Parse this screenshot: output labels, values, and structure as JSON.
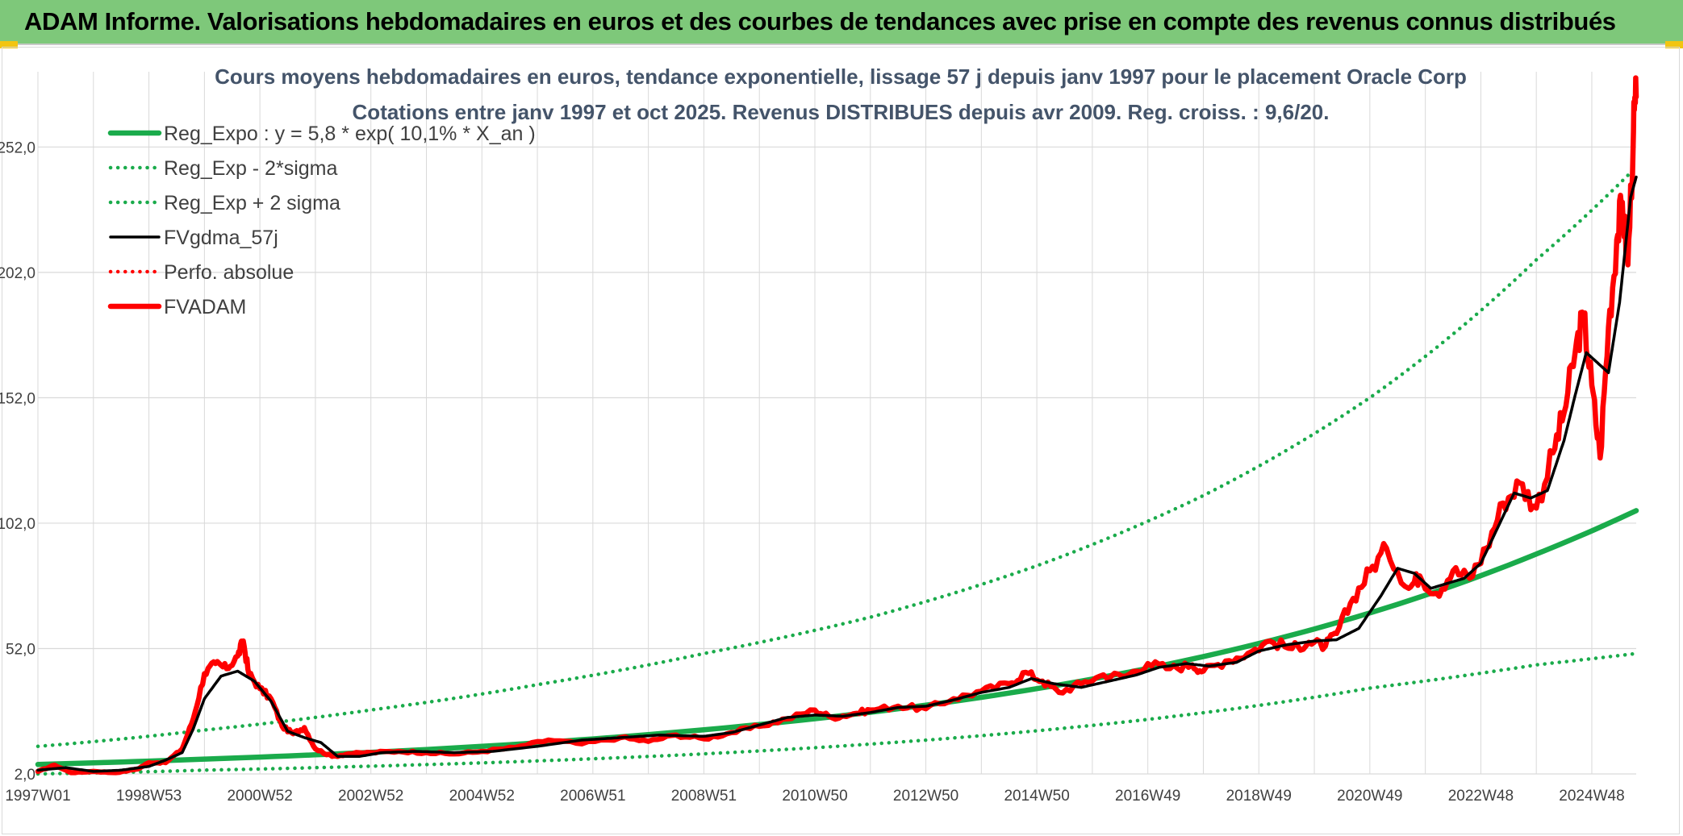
{
  "banner": {
    "title": "ADAM Informe. Valorisations hebdomadaires en euros et des courbes de tendances avec prise en compte des revenus connus distribués"
  },
  "colors": {
    "banner_bg": "#7ec87a",
    "reg_green": "#1aab4b",
    "black": "#000000",
    "red": "#ff0000",
    "grid": "#d9d9d9"
  },
  "chart_data": {
    "type": "line",
    "title": "Cours moyens hebdomadaires en euros, tendance exponentielle, lissage 57 j depuis janv 1997 pour le placement Oracle Corp",
    "subtitle": "Cotations entre janv 1997 et oct 2025. Revenus DISTRIBUES depuis avr 2009. Reg. croiss. : 9,6/20.",
    "xlabel": "",
    "ylabel": "",
    "x_range": [
      1997.0,
      2025.8
    ],
    "ylim": [
      2,
      282
    ],
    "y_ticks": [
      {
        "value": 2,
        "label": "2,0"
      },
      {
        "value": 52,
        "label": "52,0"
      },
      {
        "value": 102,
        "label": "102,0"
      },
      {
        "value": 152,
        "label": "152,0"
      },
      {
        "value": 202,
        "label": "202,0"
      },
      {
        "value": 252,
        "label": "252,0"
      }
    ],
    "x_ticks": [
      {
        "x": 1997.0,
        "label": "1997W01"
      },
      {
        "x": 1999.0,
        "label": "1998W53"
      },
      {
        "x": 2001.0,
        "label": "2000W52"
      },
      {
        "x": 2003.0,
        "label": "2002W52"
      },
      {
        "x": 2005.0,
        "label": "2004W52"
      },
      {
        "x": 2007.0,
        "label": "2006W51"
      },
      {
        "x": 2009.0,
        "label": "2008W51"
      },
      {
        "x": 2011.0,
        "label": "2010W50"
      },
      {
        "x": 2013.0,
        "label": "2012W50"
      },
      {
        "x": 2015.0,
        "label": "2014W50"
      },
      {
        "x": 2017.0,
        "label": "2016W49"
      },
      {
        "x": 2019.0,
        "label": "2018W49"
      },
      {
        "x": 2021.0,
        "label": "2020W49"
      },
      {
        "x": 2023.0,
        "label": "2022W48"
      },
      {
        "x": 2025.0,
        "label": "2024W48"
      }
    ],
    "legend_position": "top-left",
    "series": [
      {
        "name": "Reg_Expo : y = 5,8 * exp( 10,1% *  X_an )",
        "style": "solid-thick",
        "color": "#1aab4b",
        "x": [
          1997.0,
          2000.0,
          2003.0,
          2006.0,
          2009.0,
          2012.0,
          2015.0,
          2018.0,
          2021.0,
          2024.0,
          2025.8
        ],
        "y": [
          5.8,
          7.9,
          10.6,
          14.4,
          19.6,
          26.6,
          36.0,
          48.8,
          66.2,
          89.7,
          107.0
        ]
      },
      {
        "name": "Reg_Exp - 2*sigma",
        "style": "dotted",
        "color": "#1aab4b",
        "x": [
          1997.0,
          2000.0,
          2003.0,
          2006.0,
          2009.0,
          2012.0,
          2015.0,
          2018.0,
          2021.0,
          2024.0,
          2025.8
        ],
        "y": [
          2.0,
          3.5,
          5.1,
          7.2,
          10.0,
          13.9,
          19.2,
          26.4,
          36.2,
          45.5,
          50.0
        ]
      },
      {
        "name": "Reg_Exp + 2 sigma",
        "style": "dotted",
        "color": "#1aab4b",
        "x": [
          1997.0,
          2000.0,
          2003.0,
          2006.0,
          2009.0,
          2012.0,
          2015.0,
          2018.0,
          2021.0,
          2024.0,
          2025.8
        ],
        "y": [
          13.0,
          19.5,
          27.5,
          37.6,
          50.0,
          64.5,
          85.0,
          113.0,
          152.0,
          207.0,
          244.0
        ]
      },
      {
        "name": "FVgdma_57j",
        "style": "solid",
        "color": "#000000",
        "x": [
          1997.0,
          1997.5,
          1998.0,
          1998.5,
          1999.0,
          1999.3,
          1999.6,
          1999.8,
          2000.0,
          2000.3,
          2000.6,
          2000.9,
          2001.2,
          2001.5,
          2001.8,
          2002.1,
          2002.4,
          2002.8,
          2003.2,
          2003.8,
          2004.5,
          2005.2,
          2006.0,
          2006.8,
          2007.5,
          2008.2,
          2009.0,
          2009.5,
          2010.0,
          2010.5,
          2011.0,
          2011.5,
          2012.0,
          2012.5,
          2013.0,
          2013.5,
          2014.0,
          2014.5,
          2014.9,
          2015.3,
          2015.8,
          2016.3,
          2016.8,
          2017.2,
          2017.7,
          2018.1,
          2018.6,
          2019.0,
          2019.5,
          2020.0,
          2020.4,
          2020.8,
          2021.2,
          2021.5,
          2021.8,
          2022.1,
          2022.4,
          2022.7,
          2023.0,
          2023.3,
          2023.6,
          2023.9,
          2024.2,
          2024.5,
          2024.7,
          2024.9,
          2025.1,
          2025.3,
          2025.5,
          2025.7,
          2025.8
        ],
        "y": [
          3.5,
          4.5,
          3.0,
          3.5,
          5.0,
          7.5,
          10.5,
          20.0,
          32.0,
          41.0,
          43.0,
          39.0,
          31.0,
          19.0,
          16.5,
          14.5,
          9.0,
          9.0,
          10.5,
          11.0,
          10.5,
          11.0,
          13.0,
          15.5,
          16.5,
          17.5,
          17.0,
          18.5,
          21.5,
          24.5,
          25.5,
          25.0,
          26.5,
          28.5,
          29.0,
          31.5,
          34.5,
          36.5,
          40.0,
          38.0,
          36.5,
          39.0,
          41.5,
          44.5,
          46.0,
          45.0,
          46.5,
          51.0,
          53.5,
          55.0,
          55.5,
          60.0,
          73.0,
          84.0,
          82.0,
          76.0,
          78.0,
          80.0,
          86.0,
          100.0,
          114.0,
          112.0,
          115.0,
          135.0,
          153.0,
          170.0,
          166.0,
          162.0,
          190.0,
          232.0,
          240.0
        ]
      },
      {
        "name": "Perfo. absolue",
        "style": "dotted",
        "color": "#ff0000",
        "x": [],
        "y": []
      },
      {
        "name": "FVADAM",
        "style": "solid-thick",
        "color": "#ff0000",
        "x": [
          1997.0,
          1997.3,
          1997.6,
          1998.0,
          1998.4,
          1998.8,
          1999.0,
          1999.3,
          1999.6,
          1999.8,
          2000.0,
          2000.2,
          2000.4,
          2000.6,
          2000.7,
          2000.8,
          2001.0,
          2001.2,
          2001.4,
          2001.6,
          2001.8,
          2002.0,
          2002.3,
          2002.6,
          2003.0,
          2003.5,
          2004.0,
          2004.5,
          2005.0,
          2005.6,
          2006.2,
          2006.8,
          2007.5,
          2008.0,
          2008.5,
          2009.0,
          2009.5,
          2010.0,
          2010.5,
          2011.0,
          2011.3,
          2011.7,
          2012.0,
          2012.5,
          2013.0,
          2013.5,
          2014.0,
          2014.5,
          2014.8,
          2015.1,
          2015.4,
          2015.8,
          2016.2,
          2016.6,
          2017.0,
          2017.4,
          2017.8,
          2018.0,
          2018.4,
          2018.8,
          2019.2,
          2019.6,
          2019.9,
          2020.2,
          2020.4,
          2020.7,
          2021.0,
          2021.3,
          2021.7,
          2021.9,
          2022.2,
          2022.5,
          2022.8,
          2023.1,
          2023.4,
          2023.7,
          2024.0,
          2024.3,
          2024.5,
          2024.7,
          2024.85,
          2025.0,
          2025.15,
          2025.3,
          2025.45,
          2025.55,
          2025.65,
          2025.75,
          2025.8
        ],
        "y": [
          3.0,
          5.5,
          2.5,
          3.0,
          2.5,
          4.0,
          6.5,
          6.5,
          12.0,
          24.0,
          42.0,
          46.0,
          44.0,
          49.0,
          55.0,
          42.0,
          36.0,
          32.0,
          21.0,
          18.0,
          20.5,
          12.0,
          9.0,
          10.0,
          10.5,
          11.0,
          10.5,
          10.0,
          11.0,
          12.5,
          15.5,
          14.0,
          16.5,
          15.0,
          17.5,
          16.0,
          18.5,
          21.0,
          24.0,
          27.5,
          24.5,
          26.0,
          27.5,
          29.0,
          28.0,
          32.0,
          35.0,
          38.0,
          42.5,
          39.0,
          34.5,
          38.0,
          41.5,
          41.0,
          46.0,
          44.0,
          45.5,
          43.0,
          47.0,
          50.0,
          55.0,
          52.0,
          54.5,
          53.0,
          58.0,
          72.0,
          83.0,
          92.0,
          76.0,
          81.0,
          74.0,
          83.0,
          80.0,
          92.0,
          110.0,
          118.0,
          108.0,
          130.0,
          146.0,
          170.0,
          185.0,
          157.0,
          128.0,
          180.0,
          215.0,
          230.0,
          205.0,
          258.0,
          272.0
        ]
      }
    ]
  }
}
